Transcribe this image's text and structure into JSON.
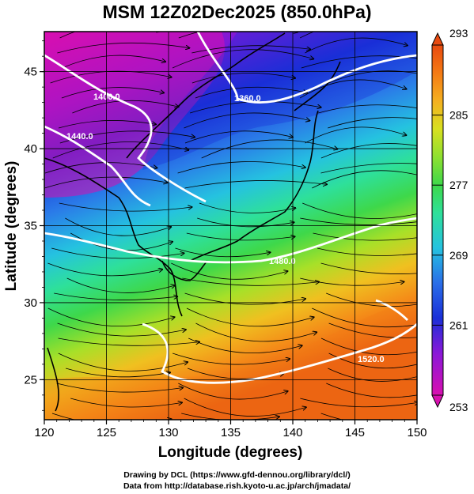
{
  "title": "MSM 12Z02Dec2025 (850.0hPa)",
  "x_axis": {
    "label": "Longitude (degrees)",
    "ticks": [
      "120",
      "125",
      "130",
      "135",
      "140",
      "145",
      "150"
    ],
    "range": [
      120,
      150
    ]
  },
  "y_axis": {
    "label": "Latitude  (degrees)",
    "ticks": [
      "25",
      "30",
      "35",
      "40",
      "45"
    ],
    "range": [
      22.4,
      47.6
    ]
  },
  "colorbar": {
    "ticks": [
      "293",
      "285",
      "277",
      "269",
      "261",
      "253"
    ],
    "range": [
      253,
      293
    ],
    "colors": [
      "#d80fb0",
      "#8a18d8",
      "#1a2fd8",
      "#2a6ee8",
      "#25c2e0",
      "#2ee09a",
      "#3ed84a",
      "#8ee030",
      "#d8e020",
      "#f4b020",
      "#f47a14",
      "#e84a10"
    ]
  },
  "contours": {
    "color": "#ffffff",
    "labels": [
      "1400.0",
      "1360.0",
      "1440.0",
      "1480.0",
      "1520.0"
    ]
  },
  "credits": {
    "line1": "Drawing by DCL (https://www.gfd-dennou.org/library/dcl/)",
    "line2": "Data from http://database.rish.kyoto-u.ac.jp/arch/jmadata/"
  }
}
